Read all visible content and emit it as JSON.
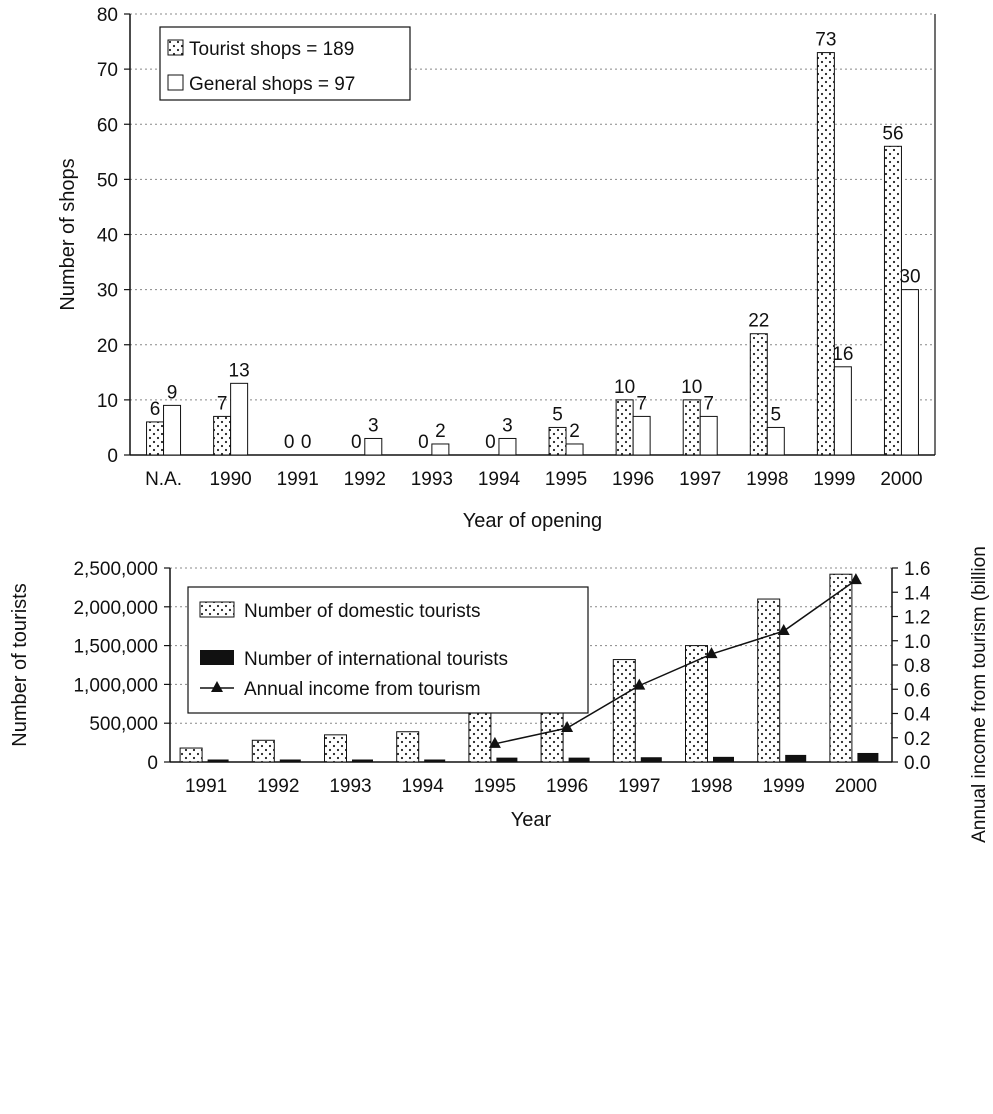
{
  "chart_data": [
    {
      "type": "bar",
      "xlabel": "Year of opening",
      "ylabel": "Number of shops",
      "ylim": [
        0,
        80
      ],
      "yticks": [
        "0",
        "10",
        "20",
        "30",
        "40",
        "50",
        "60",
        "70",
        "80"
      ],
      "grid": "horizontal dotted",
      "legend_position": "top-left",
      "categories": [
        "N.A.",
        "1990",
        "1991",
        "1992",
        "1993",
        "1994",
        "1995",
        "1996",
        "1997",
        "1998",
        "1999",
        "2000"
      ],
      "series": [
        {
          "name": "Tourist shops = 189",
          "fill": "dotted",
          "values": [
            6,
            7,
            0,
            0,
            0,
            0,
            5,
            10,
            10,
            22,
            73,
            56
          ],
          "labels": [
            "6",
            "7",
            "0",
            "0",
            "0",
            "0",
            "5",
            "10",
            "10",
            "22",
            "73",
            "56"
          ]
        },
        {
          "name": "General shops = 97",
          "fill": "white",
          "values": [
            9,
            13,
            0,
            3,
            2,
            3,
            2,
            7,
            7,
            5,
            16,
            30
          ],
          "labels": [
            "9",
            "13",
            "0",
            "3",
            "2",
            "3",
            "2",
            "7",
            "7",
            "5",
            "16",
            "30"
          ]
        }
      ]
    },
    {
      "type": "bar",
      "xlabel": "Year",
      "ylabel": "Number of tourists",
      "ylabel_right": "Annual income from tourism (billion CNY*)",
      "ylim": [
        0,
        2500000
      ],
      "ylim_right": [
        0,
        1.6
      ],
      "yticks": [
        "0",
        "500,000",
        "1,000,000",
        "1,500,000",
        "2,000,000",
        "2,500,000"
      ],
      "yticks_right": [
        "0.0",
        "0.2",
        "0.4",
        "0.6",
        "0.8",
        "1.0",
        "1.2",
        "1.4",
        "1.6"
      ],
      "grid": "horizontal dotted",
      "legend_position": "top-left",
      "categories": [
        "1991",
        "1992",
        "1993",
        "1994",
        "1995",
        "1996",
        "1997",
        "1998",
        "1999",
        "2000"
      ],
      "series": [
        {
          "name": "Number of domestic tourists",
          "type": "bar",
          "fill": "dotted",
          "axis": "left",
          "values": [
            180000,
            280000,
            350000,
            390000,
            670000,
            1040000,
            1320000,
            1500000,
            2100000,
            2420000
          ]
        },
        {
          "name": "Number of international tourists",
          "type": "bar",
          "fill": "black",
          "axis": "left",
          "values": [
            8000,
            10000,
            15000,
            20000,
            50000,
            50000,
            55000,
            60000,
            85000,
            110000
          ]
        },
        {
          "name": "Annual income from tourism",
          "type": "line",
          "marker": "triangle",
          "axis": "right",
          "values": [
            null,
            null,
            null,
            null,
            0.15,
            0.28,
            0.63,
            0.89,
            1.08,
            1.5
          ]
        }
      ]
    }
  ]
}
